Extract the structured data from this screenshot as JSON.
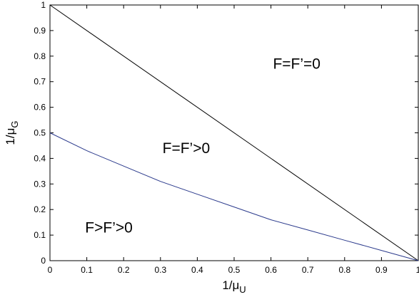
{
  "chart_data": {
    "type": "line",
    "xlabel": "1/μ",
    "xlabel_subscript": "U",
    "ylabel": "1/μ",
    "ylabel_subscript": "G",
    "xlim": [
      0,
      1
    ],
    "ylim": [
      0,
      1
    ],
    "grid": false,
    "legend": "none",
    "x_ticks": [
      0,
      0.1,
      0.2,
      0.3,
      0.4,
      0.5,
      0.6,
      0.7,
      0.8,
      0.9,
      1
    ],
    "x_tick_labels": [
      "0",
      "0.1",
      "0.2",
      "0.3",
      "0.4",
      "0.5",
      "0.6",
      "0.7",
      "0.8",
      "0.9",
      "1"
    ],
    "y_ticks": [
      0,
      0.1,
      0.2,
      0.3,
      0.4,
      0.5,
      0.6,
      0.7,
      0.8,
      0.9,
      1
    ],
    "y_tick_labels": [
      "0",
      "0.1",
      "0.2",
      "0.3",
      "0.4",
      "0.5",
      "0.6",
      "0.7",
      "0.8",
      "0.9",
      "1"
    ],
    "series": [
      {
        "color": "#000000",
        "x": [
          0,
          1
        ],
        "y": [
          1,
          0
        ]
      },
      {
        "color": "#2b3a8c",
        "x": [
          0,
          0.1,
          0.2,
          0.3,
          0.4,
          0.5,
          0.6,
          0.7,
          0.8,
          0.9,
          1
        ],
        "y": [
          0.5,
          0.43,
          0.37,
          0.31,
          0.26,
          0.21,
          0.16,
          0.12,
          0.08,
          0.04,
          0
        ]
      }
    ],
    "annotations": [
      {
        "text": "F=F’=0",
        "x": 0.67,
        "y": 0.77
      },
      {
        "text": "F=F’>0",
        "x": 0.37,
        "y": 0.44
      },
      {
        "text": "F>F’>0",
        "x": 0.16,
        "y": 0.13
      }
    ]
  }
}
